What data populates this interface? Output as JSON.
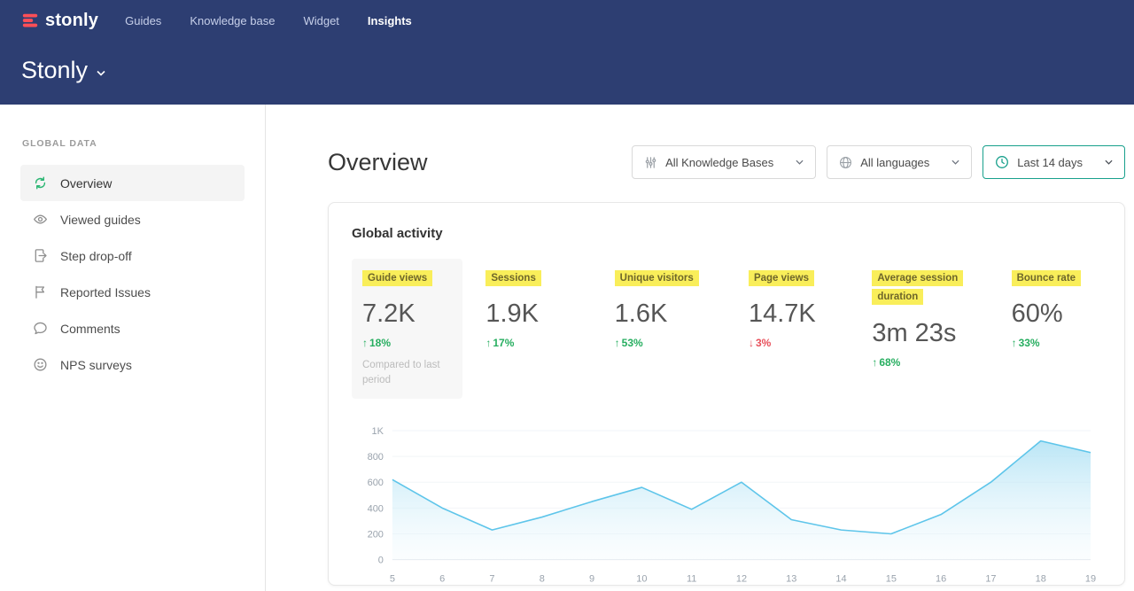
{
  "colors": {
    "header_bg": "#2d3e72",
    "brand_red": "#fd4f57",
    "positive": "#27ae60",
    "negative": "#e8505b",
    "label_highlight": "#f9ee5a",
    "accent_teal": "#18a08c",
    "chart_line": "#5ec5ea"
  },
  "topnav": {
    "logo_text": "stonly",
    "items": [
      {
        "label": "Guides",
        "active": false
      },
      {
        "label": "Knowledge base",
        "active": false
      },
      {
        "label": "Widget",
        "active": false
      },
      {
        "label": "Insights",
        "active": true
      }
    ]
  },
  "workspace": {
    "name": "Stonly"
  },
  "sidebar": {
    "section_title": "GLOBAL DATA",
    "items": [
      {
        "label": "Overview",
        "icon": "sync-icon",
        "active": true
      },
      {
        "label": "Viewed guides",
        "icon": "eye-icon",
        "active": false
      },
      {
        "label": "Step drop-off",
        "icon": "document-arrow-icon",
        "active": false
      },
      {
        "label": "Reported Issues",
        "icon": "flag-icon",
        "active": false
      },
      {
        "label": "Comments",
        "icon": "speech-bubble-icon",
        "active": false
      },
      {
        "label": "NPS surveys",
        "icon": "smiley-icon",
        "active": false
      }
    ]
  },
  "main": {
    "title": "Overview",
    "filters": [
      {
        "label": "All Knowledge Bases",
        "icon": "sliders-icon",
        "accent": false
      },
      {
        "label": "All languages",
        "icon": "globe-icon",
        "accent": false
      },
      {
        "label": "Last 14 days",
        "icon": "clock-icon",
        "accent": true
      }
    ],
    "card": {
      "title": "Global activity",
      "metrics": [
        {
          "label": "Guide views",
          "value": "7.2K",
          "delta": "18%",
          "direction": "up",
          "note": "Compared to last period",
          "selected": true
        },
        {
          "label": "Sessions",
          "value": "1.9K",
          "delta": "17%",
          "direction": "up",
          "selected": false
        },
        {
          "label": "Unique visitors",
          "value": "1.6K",
          "delta": "53%",
          "direction": "up",
          "selected": false
        },
        {
          "label": "Page views",
          "value": "14.7K",
          "delta": "3%",
          "direction": "down",
          "selected": false
        },
        {
          "label": "Average session duration",
          "value": "3m 23s",
          "delta": "68%",
          "direction": "up",
          "selected": false
        },
        {
          "label": "Bounce rate",
          "value": "60%",
          "delta": "33%",
          "direction": "up",
          "selected": false
        }
      ]
    }
  },
  "chart_data": {
    "type": "area",
    "title": "Global activity",
    "x": [
      5,
      6,
      7,
      8,
      9,
      10,
      11,
      12,
      13,
      14,
      15,
      16,
      17,
      18,
      19
    ],
    "values": [
      620,
      400,
      230,
      330,
      450,
      560,
      390,
      600,
      310,
      230,
      200,
      350,
      600,
      920,
      830
    ],
    "ylim": [
      0,
      1000
    ],
    "yticks": [
      {
        "v": 0,
        "label": "0"
      },
      {
        "v": 200,
        "label": "200"
      },
      {
        "v": 400,
        "label": "400"
      },
      {
        "v": 600,
        "label": "600"
      },
      {
        "v": 800,
        "label": "800"
      },
      {
        "v": 1000,
        "label": "1K"
      }
    ],
    "grid": true,
    "legend": false,
    "line_color": "#5ec5ea"
  }
}
